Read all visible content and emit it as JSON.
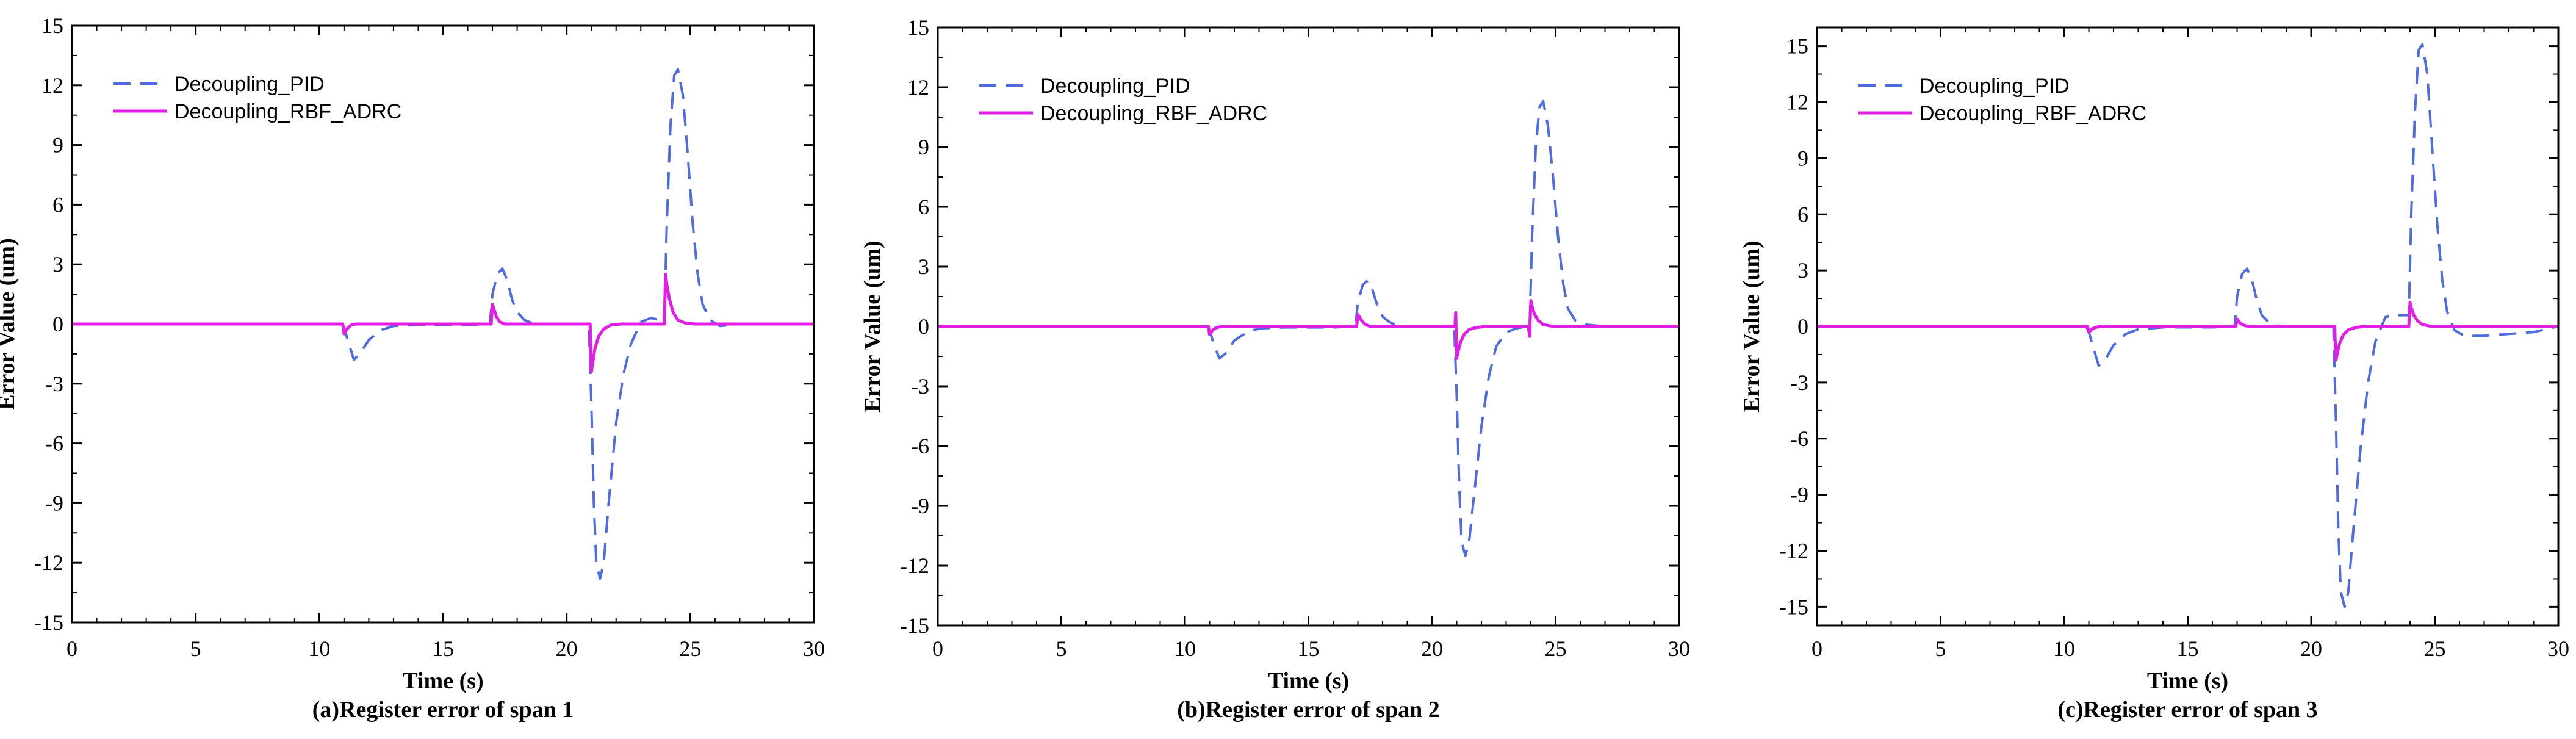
{
  "figure": {
    "colors": {
      "pid": "#4f6be0",
      "rbf": "#e01ee6",
      "axis": "#000000"
    }
  },
  "chart_data": [
    {
      "type": "line",
      "title": "(a)Register error of span 1",
      "xlabel": "Time (s)",
      "ylabel": "Error Value (um)",
      "xlim": [
        0,
        30
      ],
      "ylim": [
        -15,
        15
      ],
      "xticks": [
        0,
        5,
        10,
        15,
        20,
        25,
        30
      ],
      "yticks": [
        -15,
        -12,
        -9,
        -6,
        -3,
        0,
        3,
        6,
        9,
        12,
        15
      ],
      "legend": {
        "position": "top-left",
        "entries": [
          "Decoupling_PID",
          "Decoupling_RBF_ADRC"
        ]
      },
      "series": [
        {
          "name": "Decoupling_PID",
          "style": "dashed",
          "x": [
            0,
            10.9,
            11.0,
            11.2,
            11.4,
            11.7,
            12.0,
            12.5,
            13.0,
            14.0,
            15.0,
            16.0,
            16.9,
            17.0,
            17.2,
            17.4,
            17.6,
            17.8,
            18.0,
            18.3,
            18.6,
            19.0,
            20.0,
            20.9,
            21.0,
            21.1,
            21.2,
            21.35,
            21.5,
            21.7,
            22.0,
            22.3,
            22.6,
            23.0,
            23.4,
            23.8,
            23.95,
            24.05,
            24.2,
            24.35,
            24.5,
            24.7,
            24.9,
            25.1,
            25.3,
            25.5,
            25.8,
            26.2,
            27.0,
            30.0
          ],
          "y": [
            0,
            0,
            -0.2,
            -1.0,
            -1.8,
            -1.4,
            -0.8,
            -0.3,
            -0.1,
            -0.05,
            -0.05,
            -0.05,
            0,
            1.5,
            2.5,
            2.8,
            2.2,
            1.2,
            0.6,
            0.2,
            0.05,
            0,
            0,
            0,
            -4.0,
            -9.0,
            -12.0,
            -12.8,
            -12.0,
            -9.0,
            -5.0,
            -2.5,
            -1.0,
            0.1,
            0.3,
            0.2,
            0,
            5.0,
            10.0,
            12.5,
            12.8,
            11.5,
            8.5,
            5.0,
            2.5,
            1.0,
            0.2,
            -0.1,
            0,
            0
          ]
        },
        {
          "name": "Decoupling_RBF_ADRC",
          "style": "solid",
          "x": [
            0,
            10.95,
            11.0,
            11.05,
            11.15,
            11.3,
            11.5,
            16.95,
            17.0,
            17.05,
            17.15,
            17.3,
            17.5,
            20.95,
            21.0,
            21.05,
            21.15,
            21.3,
            21.5,
            21.8,
            22.2,
            23.95,
            24.0,
            24.05,
            24.15,
            24.3,
            24.5,
            24.8,
            25.2,
            30.0
          ],
          "y": [
            0,
            0,
            -0.5,
            -0.4,
            -0.2,
            -0.05,
            0,
            0,
            1.0,
            0.8,
            0.4,
            0.1,
            0,
            0,
            -2.4,
            -2.0,
            -1.2,
            -0.6,
            -0.25,
            -0.05,
            0,
            0,
            2.5,
            2.0,
            1.3,
            0.6,
            0.2,
            0.05,
            0,
            0
          ]
        }
      ]
    },
    {
      "type": "line",
      "title": "(b)Register error of span 2",
      "xlabel": "Time (s)",
      "ylabel": "Error Value (um)",
      "xlim": [
        0,
        30
      ],
      "ylim": [
        -15,
        15
      ],
      "xticks": [
        0,
        5,
        10,
        15,
        20,
        25,
        30
      ],
      "yticks": [
        -15,
        -12,
        -9,
        -6,
        -3,
        0,
        3,
        6,
        9,
        12,
        15
      ],
      "legend": {
        "position": "top-left",
        "entries": [
          "Decoupling_PID",
          "Decoupling_RBF_ADRC"
        ]
      },
      "series": [
        {
          "name": "Decoupling_PID",
          "style": "dashed",
          "x": [
            0,
            10.9,
            11.0,
            11.2,
            11.4,
            11.7,
            12.0,
            12.5,
            13.0,
            14.0,
            15.0,
            16.0,
            16.9,
            17.0,
            17.2,
            17.4,
            17.6,
            17.8,
            18.0,
            18.3,
            18.6,
            19.0,
            20.0,
            20.9,
            21.0,
            21.1,
            21.2,
            21.35,
            21.5,
            21.7,
            22.0,
            22.3,
            22.6,
            23.0,
            23.4,
            23.8,
            23.95,
            24.05,
            24.2,
            24.35,
            24.5,
            24.7,
            24.9,
            25.1,
            25.3,
            25.5,
            25.8,
            26.2,
            27.0,
            30.0
          ],
          "y": [
            0,
            0,
            -0.2,
            -1.0,
            -1.6,
            -1.3,
            -0.7,
            -0.3,
            -0.1,
            -0.05,
            -0.05,
            -0.05,
            0,
            1.2,
            2.1,
            2.3,
            1.8,
            1.0,
            0.5,
            0.2,
            0.05,
            0,
            0,
            0,
            -3.5,
            -8.0,
            -10.8,
            -11.5,
            -10.8,
            -8.5,
            -5.0,
            -2.5,
            -1.0,
            -0.3,
            -0.1,
            0,
            0,
            4.5,
            9.0,
            11.0,
            11.3,
            10.0,
            7.5,
            4.5,
            2.2,
            0.9,
            0.3,
            0.1,
            0,
            0
          ]
        },
        {
          "name": "Decoupling_RBF_ADRC",
          "style": "solid",
          "x": [
            0,
            10.95,
            11.0,
            11.05,
            11.15,
            11.3,
            11.5,
            16.95,
            17.0,
            17.05,
            17.15,
            17.3,
            17.5,
            20.93,
            20.96,
            21.0,
            21.05,
            21.15,
            21.3,
            21.5,
            21.8,
            22.2,
            23.9,
            23.95,
            24.0,
            24.05,
            24.15,
            24.3,
            24.5,
            24.8,
            25.2,
            30.0
          ],
          "y": [
            0,
            0,
            -0.4,
            -0.3,
            -0.15,
            -0.05,
            0,
            0,
            0.6,
            0.5,
            0.3,
            0.1,
            0,
            0,
            0.7,
            -1.6,
            -1.3,
            -0.8,
            -0.4,
            -0.15,
            -0.05,
            0,
            0,
            -0.5,
            1.3,
            1.0,
            0.6,
            0.3,
            0.1,
            0.02,
            0,
            0
          ]
        }
      ]
    },
    {
      "type": "line",
      "title": "(c)Register error of span 3",
      "xlabel": "Time (s)",
      "ylabel": "Error Value (um)",
      "xlim": [
        0,
        30
      ],
      "ylim": [
        -16,
        16
      ],
      "xticks": [
        0,
        5,
        10,
        15,
        20,
        25,
        30
      ],
      "yticks": [
        -15,
        -12,
        -9,
        -6,
        -3,
        0,
        3,
        6,
        9,
        12,
        15
      ],
      "legend": {
        "position": "top-left",
        "entries": [
          "Decoupling_PID",
          "Decoupling_RBF_ADRC"
        ]
      },
      "series": [
        {
          "name": "Decoupling_PID",
          "style": "dashed",
          "x": [
            0,
            10.9,
            11.0,
            11.2,
            11.4,
            11.7,
            12.0,
            12.5,
            13.0,
            14.0,
            15.0,
            16.0,
            16.9,
            17.0,
            17.2,
            17.4,
            17.6,
            17.8,
            18.0,
            18.3,
            18.6,
            19.0,
            20.0,
            20.9,
            21.0,
            21.1,
            21.2,
            21.35,
            21.5,
            21.7,
            22.0,
            22.3,
            22.6,
            23.0,
            23.4,
            23.8,
            23.95,
            24.05,
            24.2,
            24.35,
            24.5,
            24.7,
            24.9,
            25.1,
            25.3,
            25.5,
            25.8,
            26.2,
            27.0,
            28.0,
            29.0,
            30.0
          ],
          "y": [
            0,
            0,
            -0.3,
            -1.2,
            -2.1,
            -1.7,
            -1.0,
            -0.4,
            -0.15,
            -0.05,
            -0.05,
            -0.05,
            0,
            1.6,
            2.8,
            3.1,
            2.5,
            1.4,
            0.6,
            0.2,
            0.05,
            0,
            0,
            0,
            -5.0,
            -11.0,
            -14.2,
            -15.0,
            -14.2,
            -11.0,
            -6.5,
            -3.0,
            -0.8,
            0.5,
            0.6,
            0.6,
            0.6,
            6.0,
            11.5,
            14.8,
            15.1,
            13.5,
            9.5,
            5.5,
            2.5,
            0.8,
            -0.2,
            -0.5,
            -0.5,
            -0.4,
            -0.3,
            0
          ]
        },
        {
          "name": "Decoupling_RBF_ADRC",
          "style": "solid",
          "x": [
            0,
            10.95,
            11.0,
            11.05,
            11.15,
            11.3,
            11.5,
            16.95,
            17.0,
            17.05,
            17.15,
            17.3,
            17.5,
            20.95,
            21.0,
            21.05,
            21.15,
            21.3,
            21.5,
            21.8,
            22.2,
            23.95,
            24.0,
            24.05,
            24.15,
            24.3,
            24.5,
            24.8,
            25.2,
            30.0
          ],
          "y": [
            0,
            0,
            -0.3,
            -0.25,
            -0.12,
            -0.04,
            0,
            0,
            0.4,
            0.3,
            0.15,
            0.05,
            0,
            0,
            -1.8,
            -1.5,
            -0.9,
            -0.45,
            -0.18,
            -0.05,
            0,
            0,
            1.3,
            1.0,
            0.6,
            0.3,
            0.1,
            0.02,
            0,
            0
          ]
        }
      ]
    }
  ]
}
